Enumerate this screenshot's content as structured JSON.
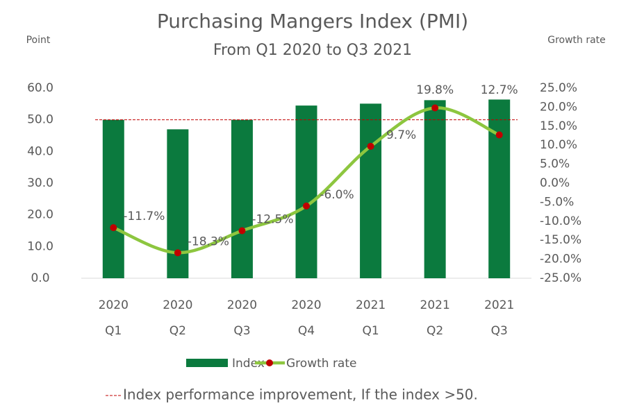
{
  "chart_data": {
    "type": "bar",
    "title": "Purchasing Mangers Index (PMI)",
    "subtitle": "From Q1 2020 to Q3 2021",
    "y_label": "Point",
    "y2_label": "Growth rate",
    "categories": [
      [
        "2020",
        "Q1"
      ],
      [
        "2020",
        "Q2"
      ],
      [
        "2020",
        "Q3"
      ],
      [
        "2020",
        "Q4"
      ],
      [
        "2021",
        "Q1"
      ],
      [
        "2021",
        "Q2"
      ],
      [
        "2021",
        "Q3"
      ]
    ],
    "series": [
      {
        "name": "Index",
        "type": "bar",
        "color": "#0b7a3e",
        "values": [
          50.0,
          47.0,
          50.0,
          54.5,
          55.1,
          56.2,
          56.4
        ]
      },
      {
        "name": "Growth rate",
        "type": "line",
        "axis": "y2",
        "color": "#8dc63f",
        "marker_color": "#c00000",
        "values": [
          -11.7,
          -18.3,
          -12.5,
          -6.0,
          9.7,
          19.8,
          12.7
        ],
        "value_labels": [
          "-11.7%",
          "-18.3%",
          "-12.5%",
          "-6.0%",
          "9.7%",
          "19.8%",
          "12.7%"
        ]
      }
    ],
    "ylim": [
      0,
      60
    ],
    "yticks": [
      {
        "value": 0,
        "label": "0.0"
      },
      {
        "value": 10,
        "label": "10.0"
      },
      {
        "value": 20,
        "label": "20.0"
      },
      {
        "value": 30,
        "label": "30.0"
      },
      {
        "value": 40,
        "label": "40.0"
      },
      {
        "value": 50,
        "label": "50.0"
      },
      {
        "value": 60,
        "label": "60.0"
      }
    ],
    "y2lim": [
      -25,
      25
    ],
    "y2ticks": [
      {
        "value": -25,
        "label": "-25.0%"
      },
      {
        "value": -20,
        "label": "-20.0%"
      },
      {
        "value": -15,
        "label": "-15.0%"
      },
      {
        "value": -10,
        "label": "-10.0%"
      },
      {
        "value": -5,
        "label": "-5.0%"
      },
      {
        "value": 0,
        "label": "0.0%"
      },
      {
        "value": 5,
        "label": "5.0%"
      },
      {
        "value": 10,
        "label": "10.0%"
      },
      {
        "value": 15,
        "label": "15.0%"
      },
      {
        "value": 20,
        "label": "20.0%"
      },
      {
        "value": 25,
        "label": "25.0%"
      }
    ],
    "reference_line": {
      "value": 50,
      "color": "#c00000",
      "label": "Index performance improvement, If the index >50."
    },
    "legend": "bottom"
  }
}
